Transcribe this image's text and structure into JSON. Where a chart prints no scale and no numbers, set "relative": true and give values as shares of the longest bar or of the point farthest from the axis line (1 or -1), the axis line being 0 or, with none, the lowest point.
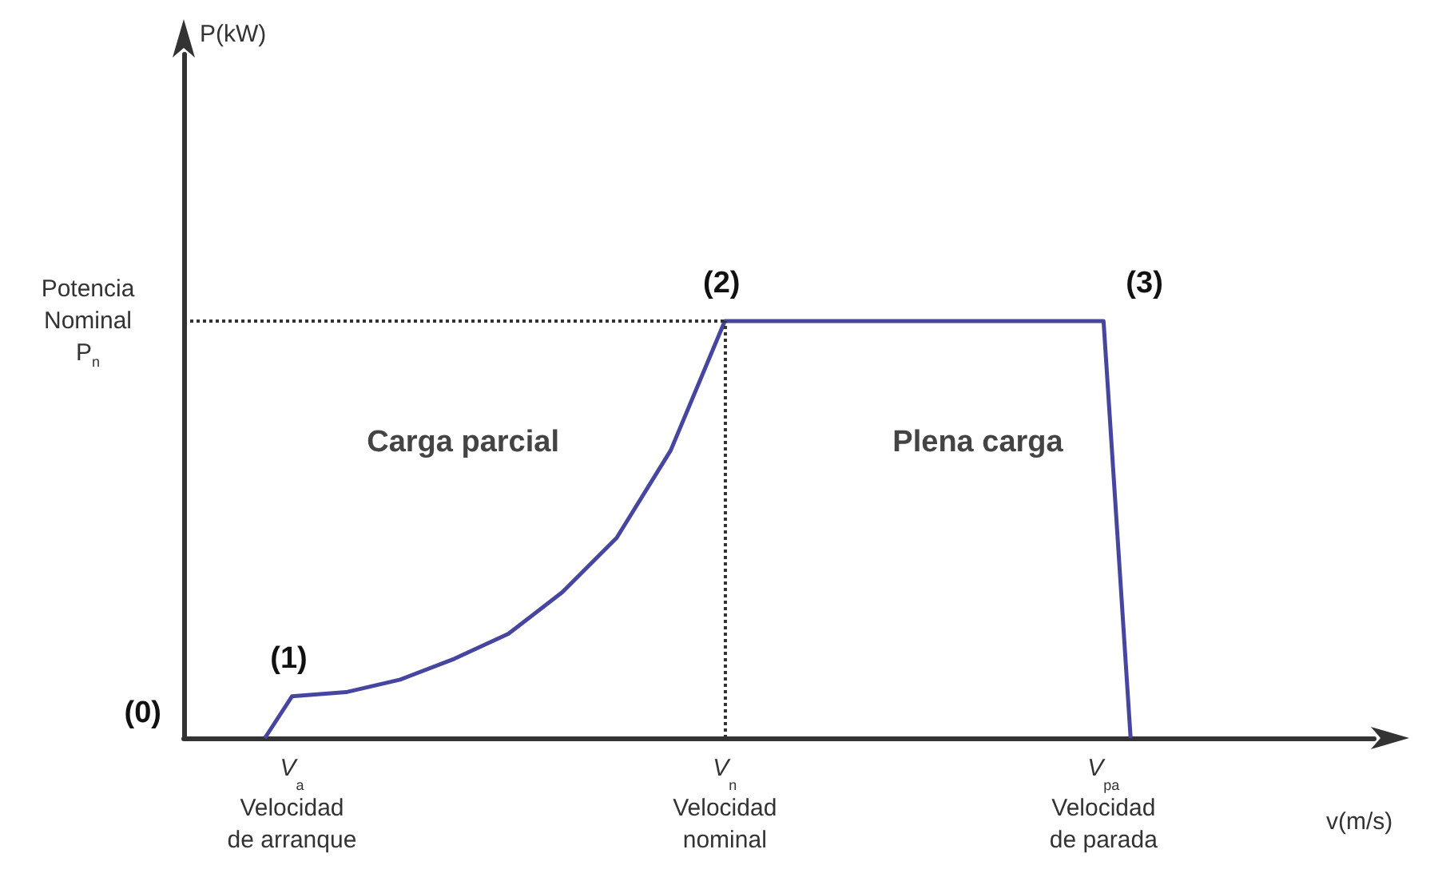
{
  "chart_data": {
    "type": "line",
    "relative": true,
    "xlabel": "v(m/s)",
    "categories": [
      null,
      null,
      null,
      null,
      "V$_{a}$\nVelocidad\nde arranque",
      null,
      null,
      null,
      null,
      null,
      null,
      null,
      null,
      null,
      null,
      null,
      null,
      null,
      null,
      null,
      "V$_{n}$\nVelocidad\nnominal",
      null,
      null,
      null,
      null,
      null,
      null,
      null,
      null,
      null,
      null,
      null,
      null,
      null,
      "V$_{pa}$\nVelocidad\nde parada",
      null,
      null,
      null,
      null,
      null,
      null,
      null,
      null,
      null,
      null
    ],
    "series": [
      {
        "color": "#4646a0",
        "values": [
          null,
          null,
          null,
          0,
          0.1,
          null,
          0.11,
          null,
          0.14,
          null,
          0.19,
          null,
          0.25,
          null,
          0.35,
          null,
          0.48,
          null,
          0.69,
          null,
          1,
          1,
          1,
          1,
          1,
          1,
          1,
          1,
          1,
          1,
          1,
          1,
          1,
          1,
          1,
          0,
          null,
          null,
          null,
          null,
          null,
          null,
          null,
          null,
          null
        ]
      }
    ],
    "ref_lines": [
      {
        "axis": "y",
        "value": 1,
        "label": "Potencia\nNominal\nP$_{n}$",
        "line_style": "dotted",
        "color": "#333333"
      },
      {
        "axis": "x",
        "value": "V$_{n}$\nVelocidad\nnominal",
        "label": null,
        "line_style": "dotted",
        "color": "#333333"
      }
    ],
    "annotations": [
      "(0)",
      {
        "text": "(1)",
        "x": "V$_{a}$\nVelocidad\nde arranque",
        "y": 0.1
      },
      {
        "text": "(2)",
        "x": "V$_{n}$\nVelocidad\nnominal",
        "y": 1
      },
      {
        "text": "(3)",
        "x": "V$_{pa}$\nVelocidad\nde parada",
        "y": 1
      },
      "Carga parcial",
      "Plena carga",
      "P(kW)"
    ],
    "marker": "none",
    "line_style": "solid",
    "grid": false
  }
}
